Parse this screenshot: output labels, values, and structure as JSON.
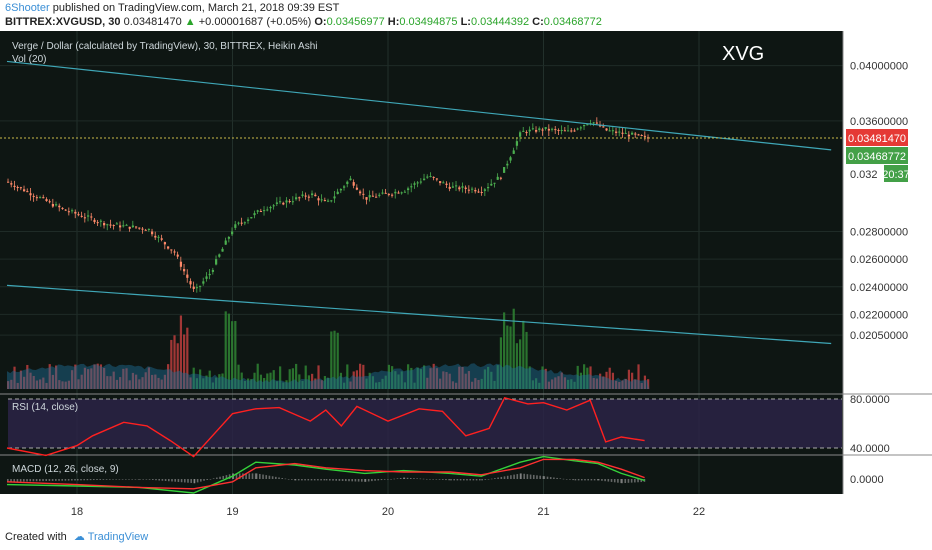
{
  "header": {
    "author": "6Shooter",
    "published_text": "published on TradingView.com, March 21, 2018 09:39 EST",
    "symbol": "BITTREX:XVGUSD, 30",
    "last": "0.03481470",
    "change": "+0.00001687 (+0.05%)",
    "o_label": "O:",
    "o": "0.03456977",
    "h_label": "H:",
    "h": "0.03494875",
    "l_label": "L:",
    "l": "0.03444392",
    "c_label": "C:",
    "c": "0.03468772"
  },
  "chart_title": "Verge / Dollar (calculated by TradingView), 30, BITTREX, Heikin Ashi",
  "vol_label": "Vol (20)",
  "watermark": "XVG",
  "price_badges": {
    "last": "0.03481470",
    "close": "0.03468772",
    "countdown": "20:37",
    "partial_tick": "0.032"
  },
  "rsi_label": "RSI (14, close)",
  "macd_label": "MACD (12, 26, close, 9)",
  "footer": {
    "created_with": "Created with",
    "brand": "TradingView"
  },
  "colors": {
    "bg": "#0e1613",
    "up": "#4caf50",
    "down": "#ff8a6a",
    "trend": "#3fa7b7",
    "rsi": "#ff2020",
    "macd": "#35d23a",
    "signal": "#ff3030"
  },
  "chart_data": [
    {
      "type": "candlestick",
      "title": "Verge / Dollar (calculated by TradingView), 30, BITTREX, Heikin Ashi",
      "x_ticks": [
        "18",
        "19",
        "20",
        "21",
        "22"
      ],
      "y_ticks": [
        "0.04000000",
        "0.03600000",
        "0.02800000",
        "0.02600000",
        "0.02400000",
        "0.02200000",
        "0.02050000"
      ],
      "ylim": [
        0.0195,
        0.0425
      ],
      "trendlines": [
        {
          "from": [
            "17.55",
            0.0403
          ],
          "to": [
            "22.85",
            0.0339
          ]
        },
        {
          "from": [
            "17.55",
            0.0241
          ],
          "to": [
            "22.85",
            0.0199
          ]
        }
      ],
      "approx_close_path": [
        [
          "17.55",
          0.0316
        ],
        [
          "17.9",
          0.0296
        ],
        [
          "18.2",
          0.0285
        ],
        [
          "18.45",
          0.0282
        ],
        [
          "18.62",
          0.0265
        ],
        [
          "18.75",
          0.0236
        ],
        [
          "18.85",
          0.025
        ],
        [
          "19.0",
          0.0283
        ],
        [
          "19.2",
          0.0297
        ],
        [
          "19.5",
          0.0307
        ],
        [
          "19.6",
          0.03
        ],
        [
          "19.75",
          0.0318
        ],
        [
          "19.85",
          0.0304
        ],
        [
          "20.1",
          0.031
        ],
        [
          "20.25",
          0.032
        ],
        [
          "20.4",
          0.0312
        ],
        [
          "20.6",
          0.031
        ],
        [
          "20.72",
          0.032
        ],
        [
          "20.85",
          0.0352
        ],
        [
          "21.0",
          0.0354
        ],
        [
          "21.15",
          0.0352
        ],
        [
          "21.3",
          0.036
        ],
        [
          "21.4",
          0.0353
        ],
        [
          "21.55",
          0.035
        ],
        [
          "21.68",
          0.0347
        ]
      ]
    },
    {
      "type": "line",
      "title": "RSI (14, close)",
      "y_ticks": [
        "80.0000",
        "40.0000"
      ],
      "ylim": [
        20,
        90
      ],
      "series": [
        {
          "x": [
            "17.55",
            "17.8",
            "18.0",
            "18.1",
            "18.3",
            "18.45",
            "18.6",
            "18.75",
            "19.0",
            "19.15",
            "19.3",
            "19.5",
            "19.6",
            "19.7",
            "19.8",
            "20.0",
            "20.2",
            "20.35",
            "20.5",
            "20.65",
            "20.75",
            "20.9",
            "21.0",
            "21.15",
            "21.3",
            "21.4",
            "21.5",
            "21.65"
          ],
          "values": [
            40,
            34,
            42,
            50,
            61,
            58,
            46,
            33,
            68,
            72,
            73,
            62,
            71,
            58,
            74,
            62,
            72,
            70,
            50,
            56,
            81,
            76,
            77,
            71,
            79,
            45,
            49,
            46
          ]
        }
      ]
    },
    {
      "type": "line",
      "title": "MACD (12, 26, close, 9)",
      "y_ticks": [
        "0.0000"
      ],
      "series": [
        {
          "x": [
            "17.55",
            "18.0",
            "18.4",
            "18.75",
            "19.0",
            "19.15",
            "19.4",
            "19.6",
            "19.85",
            "20.1",
            "20.4",
            "20.6",
            "20.85",
            "21.0",
            "21.2",
            "21.35",
            "21.5",
            "21.65"
          ],
          "values": [
            -0.0004,
            -0.0005,
            -0.0006,
            -0.001,
            0.0002,
            0.0012,
            0.001,
            0.0007,
            0.0004,
            0.0006,
            0.0004,
            0.0002,
            0.0012,
            0.0016,
            0.0013,
            0.0011,
            0.0004,
            -0.0001
          ]
        },
        {
          "x": [
            "17.55",
            "18.0",
            "18.4",
            "18.75",
            "19.0",
            "19.15",
            "19.4",
            "19.6",
            "19.85",
            "20.1",
            "20.4",
            "20.6",
            "20.85",
            "21.0",
            "21.2",
            "21.35",
            "21.5",
            "21.65"
          ],
          "values": [
            -0.0002,
            -0.0004,
            -0.0006,
            -0.0007,
            -0.0002,
            0.0008,
            0.0011,
            0.0008,
            0.0006,
            0.0005,
            0.0005,
            0.0003,
            0.0008,
            0.0014,
            0.0014,
            0.0012,
            0.0007,
            0.0001
          ]
        }
      ]
    }
  ]
}
